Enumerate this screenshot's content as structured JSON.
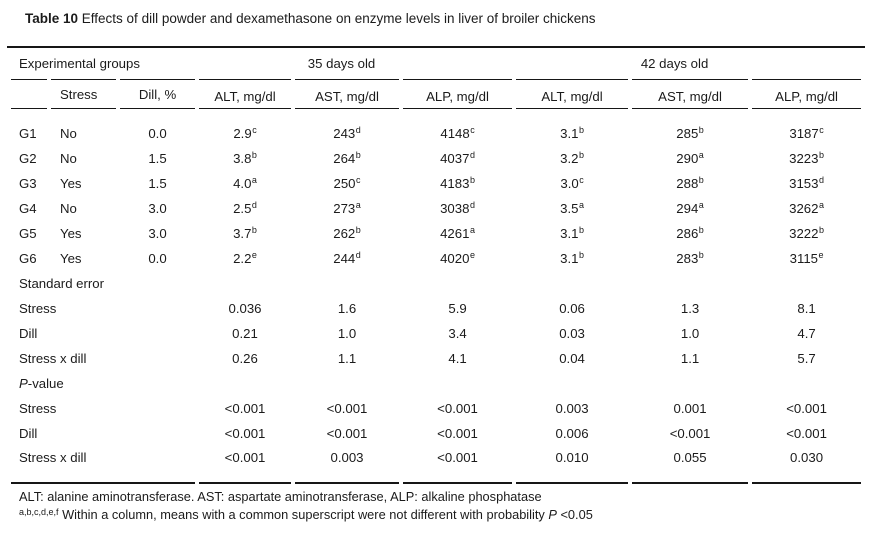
{
  "title": {
    "bold": "Table 10",
    "rest": " Effects of dill powder and dexamethasone on enzyme levels in liver of broiler chickens"
  },
  "table": {
    "col_groups": [
      "Experimental groups",
      "35 days old",
      "42 days old"
    ],
    "sub_headers": [
      "",
      "Stress",
      "Dill, %",
      "ALT, mg/dl",
      "AST, mg/dl",
      "ALP, mg/dl",
      "ALT, mg/dl",
      "AST, mg/dl",
      "ALP, mg/dl"
    ],
    "groups": [
      {
        "id": "G1",
        "stress": "No",
        "dill": "0.0",
        "values": [
          {
            "v": "2.9",
            "s": "c"
          },
          {
            "v": "243",
            "s": "d"
          },
          {
            "v": "4148",
            "s": "c"
          },
          {
            "v": "3.1",
            "s": "b"
          },
          {
            "v": "285",
            "s": "b"
          },
          {
            "v": "3187",
            "s": "c"
          }
        ]
      },
      {
        "id": "G2",
        "stress": "No",
        "dill": "1.5",
        "values": [
          {
            "v": "3.8",
            "s": "b"
          },
          {
            "v": "264",
            "s": "b"
          },
          {
            "v": "4037",
            "s": "d"
          },
          {
            "v": "3.2",
            "s": "b"
          },
          {
            "v": "290",
            "s": "a"
          },
          {
            "v": "3223",
            "s": "b"
          }
        ]
      },
      {
        "id": "G3",
        "stress": "Yes",
        "dill": "1.5",
        "values": [
          {
            "v": "4.0",
            "s": "a"
          },
          {
            "v": "250",
            "s": "c"
          },
          {
            "v": "4183",
            "s": "b"
          },
          {
            "v": "3.0",
            "s": "c"
          },
          {
            "v": "288",
            "s": "b"
          },
          {
            "v": "3153",
            "s": "d"
          }
        ]
      },
      {
        "id": "G4",
        "stress": "No",
        "dill": "3.0",
        "values": [
          {
            "v": "2.5",
            "s": "d"
          },
          {
            "v": "273",
            "s": "a"
          },
          {
            "v": "3038",
            "s": "d"
          },
          {
            "v": "3.5",
            "s": "a"
          },
          {
            "v": "294",
            "s": "a"
          },
          {
            "v": "3262",
            "s": "a"
          }
        ]
      },
      {
        "id": "G5",
        "stress": "Yes",
        "dill": "3.0",
        "values": [
          {
            "v": "3.7",
            "s": "b"
          },
          {
            "v": "262",
            "s": "b"
          },
          {
            "v": "4261",
            "s": "a"
          },
          {
            "v": "3.1",
            "s": "b"
          },
          {
            "v": "286",
            "s": "b"
          },
          {
            "v": "3222",
            "s": "b"
          }
        ]
      },
      {
        "id": "G6",
        "stress": "Yes",
        "dill": "0.0",
        "values": [
          {
            "v": "2.2",
            "s": "e"
          },
          {
            "v": "244",
            "s": "d"
          },
          {
            "v": "4020",
            "s": "e"
          },
          {
            "v": "3.1",
            "s": "b"
          },
          {
            "v": "283",
            "s": "b"
          },
          {
            "v": "3115",
            "s": "e"
          }
        ]
      }
    ],
    "standard_error": {
      "label": "Standard error",
      "rows": [
        {
          "label": "Stress",
          "values": [
            "0.036",
            "1.6",
            "5.9",
            "0.06",
            "1.3",
            "8.1"
          ]
        },
        {
          "label": "Dill",
          "values": [
            "0.21",
            "1.0",
            "3.4",
            "0.03",
            "1.0",
            "4.7"
          ]
        },
        {
          "label": "Stress x dill",
          "values": [
            "0.26",
            "1.1",
            "4.1",
            "0.04",
            "1.1",
            "5.7"
          ]
        }
      ]
    },
    "p_value": {
      "label_italic": "P",
      "label_rest": "-value",
      "rows": [
        {
          "label": "Stress",
          "values": [
            "<0.001",
            "<0.001",
            "<0.001",
            "0.003",
            "0.001",
            "<0.001"
          ]
        },
        {
          "label": "Dill",
          "values": [
            "<0.001",
            "<0.001",
            "<0.001",
            "0.006",
            "<0.001",
            "<0.001"
          ]
        },
        {
          "label": "Stress x dill",
          "values": [
            "<0.001",
            "0.003",
            "<0.001",
            "0.010",
            "0.055",
            "0.030"
          ]
        }
      ]
    }
  },
  "footnotes": {
    "line1": "ALT: alanine aminotransferase. AST: aspartate aminotransferase, ALP: alkaline phosphatase",
    "line2_sup": "a,b,c,d,e,f",
    "line2_pre": " Within a column, means with a common superscript were not different with probability ",
    "line2_italic": "P",
    "line2_post": " <0.05"
  }
}
